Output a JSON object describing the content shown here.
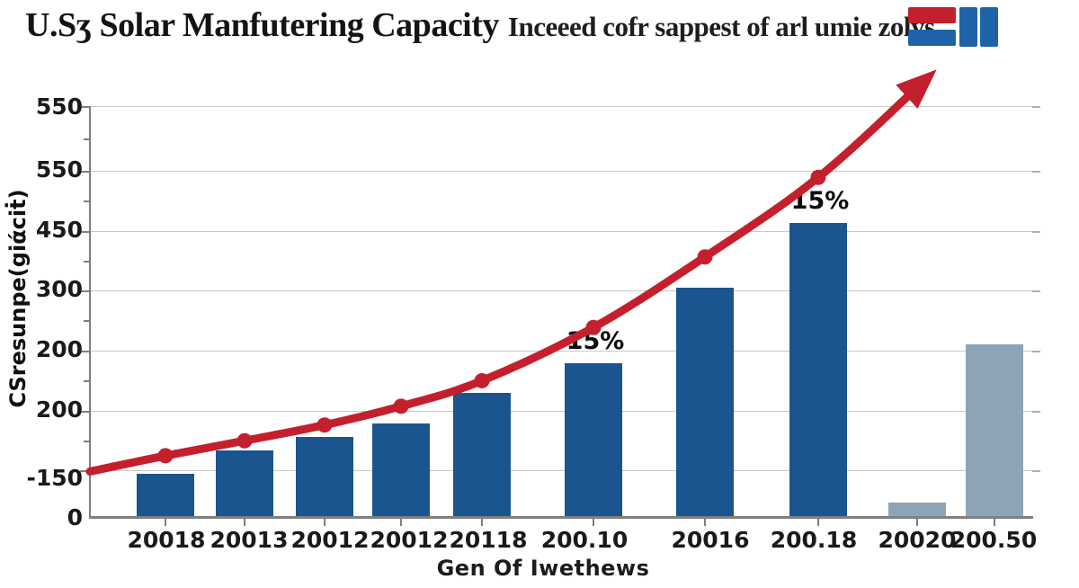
{
  "header": {
    "title": "U.Sʒ Solar Manfutering Capacity",
    "subtitle": "Inceeed cofr sappest of arl umie zolys"
  },
  "logo": {
    "description": "flag-style logo: red bar over blue bar plus two blue vertical bars",
    "colors": {
      "red": "#c2202d",
      "blue": "#1e62a8"
    }
  },
  "chart_data": {
    "type": "bar+line",
    "title": "U.Sʒ Solar Manfutering Capacity",
    "subtitle": "Inceeed cofr sappest of arl umie zolys",
    "xlabel": "Gen Of Iwethews",
    "ylabel": "CSresunpe(giάciṫ)",
    "categories": [
      "20018",
      "20013",
      "20012",
      "20012",
      "20118",
      "200.10",
      "20016",
      "200.18",
      "20020",
      "200.50"
    ],
    "y_tick_labels": [
      "550",
      "550",
      "450",
      "300",
      "200",
      "200",
      "-150",
      "0"
    ],
    "ylim": [
      0,
      583
    ],
    "grid": "on",
    "legend": "none",
    "series": [
      {
        "name": "capacity-bars",
        "type": "bar",
        "values": [
          60,
          91,
          109,
          127,
          168,
          207,
          308,
          394,
          22,
          232
        ],
        "bar_colors": [
          "blue",
          "blue",
          "blue",
          "blue",
          "blue",
          "blue",
          "blue",
          "blue",
          "gray",
          "gray"
        ]
      },
      {
        "name": "growth-trend-line",
        "type": "line",
        "arrow_end": true,
        "values": [
          63,
          84,
          104,
          125,
          150,
          184,
          255,
          349,
          455,
          586
        ],
        "marker_point_indices": [
          1,
          2,
          3,
          4,
          5,
          6,
          7,
          8
        ]
      }
    ],
    "annotations": [
      {
        "text": "15%",
        "category_index": 5
      },
      {
        "text": "15%",
        "category_index": 7
      }
    ],
    "colors": {
      "bar_blue": "#1a5590",
      "bar_gray": "#8da4b6",
      "line_red": "#c41f2d",
      "grid_line": "#c9c9c9",
      "axis": "#7f7f7f",
      "text": "#1a1a1a"
    }
  }
}
